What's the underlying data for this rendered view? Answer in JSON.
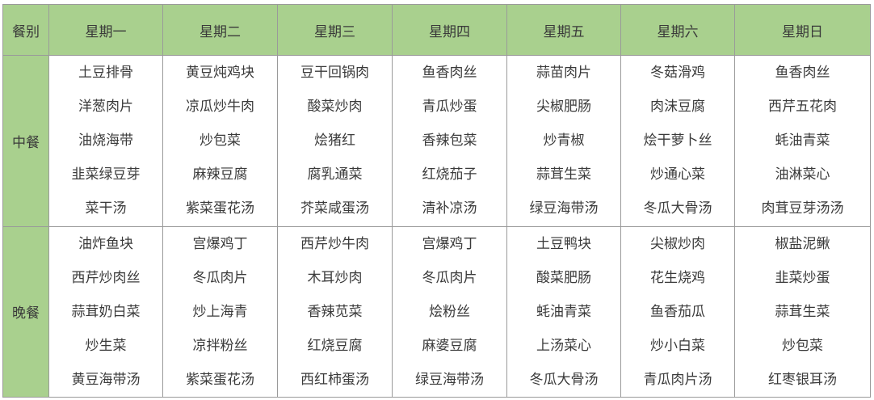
{
  "colors": {
    "header_bg": "#a9d08e",
    "border": "#9a9a9a",
    "text": "#3a3a3a"
  },
  "header": {
    "meal_label": "餐别",
    "days": [
      "星期一",
      "星期二",
      "星期三",
      "星期四",
      "星期五",
      "星期六",
      "星期日"
    ]
  },
  "rows": [
    {
      "meal": "中餐",
      "days": [
        [
          "土豆排骨",
          "洋葱肉片",
          "油烧海带",
          "韭菜绿豆芽",
          "菜干汤"
        ],
        [
          "黄豆炖鸡块",
          "凉瓜炒牛肉",
          "炒包菜",
          "麻辣豆腐",
          "紫菜蛋花汤"
        ],
        [
          "豆干回锅肉",
          "酸菜炒肉",
          "烩猪红",
          "腐乳通菜",
          "芥菜咸蛋汤"
        ],
        [
          "鱼香肉丝",
          "青瓜炒蛋",
          "香辣包菜",
          "红烧茄子",
          "清补凉汤"
        ],
        [
          "蒜苗肉片",
          "尖椒肥肠",
          "炒青椒",
          "蒜茸生菜",
          "绿豆海带汤"
        ],
        [
          "冬菇滑鸡",
          "肉沫豆腐",
          "烩干萝卜丝",
          "炒通心菜",
          "冬瓜大骨汤"
        ],
        [
          "鱼香肉丝",
          "西芹五花肉",
          "蚝油青菜",
          "油淋菜心",
          "肉茸豆芽汤汤"
        ]
      ]
    },
    {
      "meal": "晚餐",
      "days": [
        [
          "油炸鱼块",
          "西芹炒肉丝",
          "蒜茸奶白菜",
          "炒生菜",
          "黄豆海带汤"
        ],
        [
          "宫爆鸡丁",
          "冬瓜肉片",
          "炒上海青",
          "凉拌粉丝",
          "紫菜蛋花汤"
        ],
        [
          "西芹炒牛肉",
          "木耳炒肉",
          "香辣苋菜",
          "红烧豆腐",
          "西红柿蛋汤"
        ],
        [
          "宫爆鸡丁",
          "冬瓜肉片",
          "烩粉丝",
          "麻婆豆腐",
          "绿豆海带汤"
        ],
        [
          "土豆鸭块",
          "酸菜肥肠",
          "蚝油青菜",
          "上汤菜心",
          "冬瓜大骨汤"
        ],
        [
          "尖椒炒肉",
          "花生烧鸡",
          "鱼香茄瓜",
          "炒小白菜",
          "青瓜肉片汤"
        ],
        [
          "椒盐泥鳅",
          "韭菜炒蛋",
          "蒜茸生菜",
          "炒包菜",
          "红枣银耳汤"
        ]
      ]
    }
  ]
}
